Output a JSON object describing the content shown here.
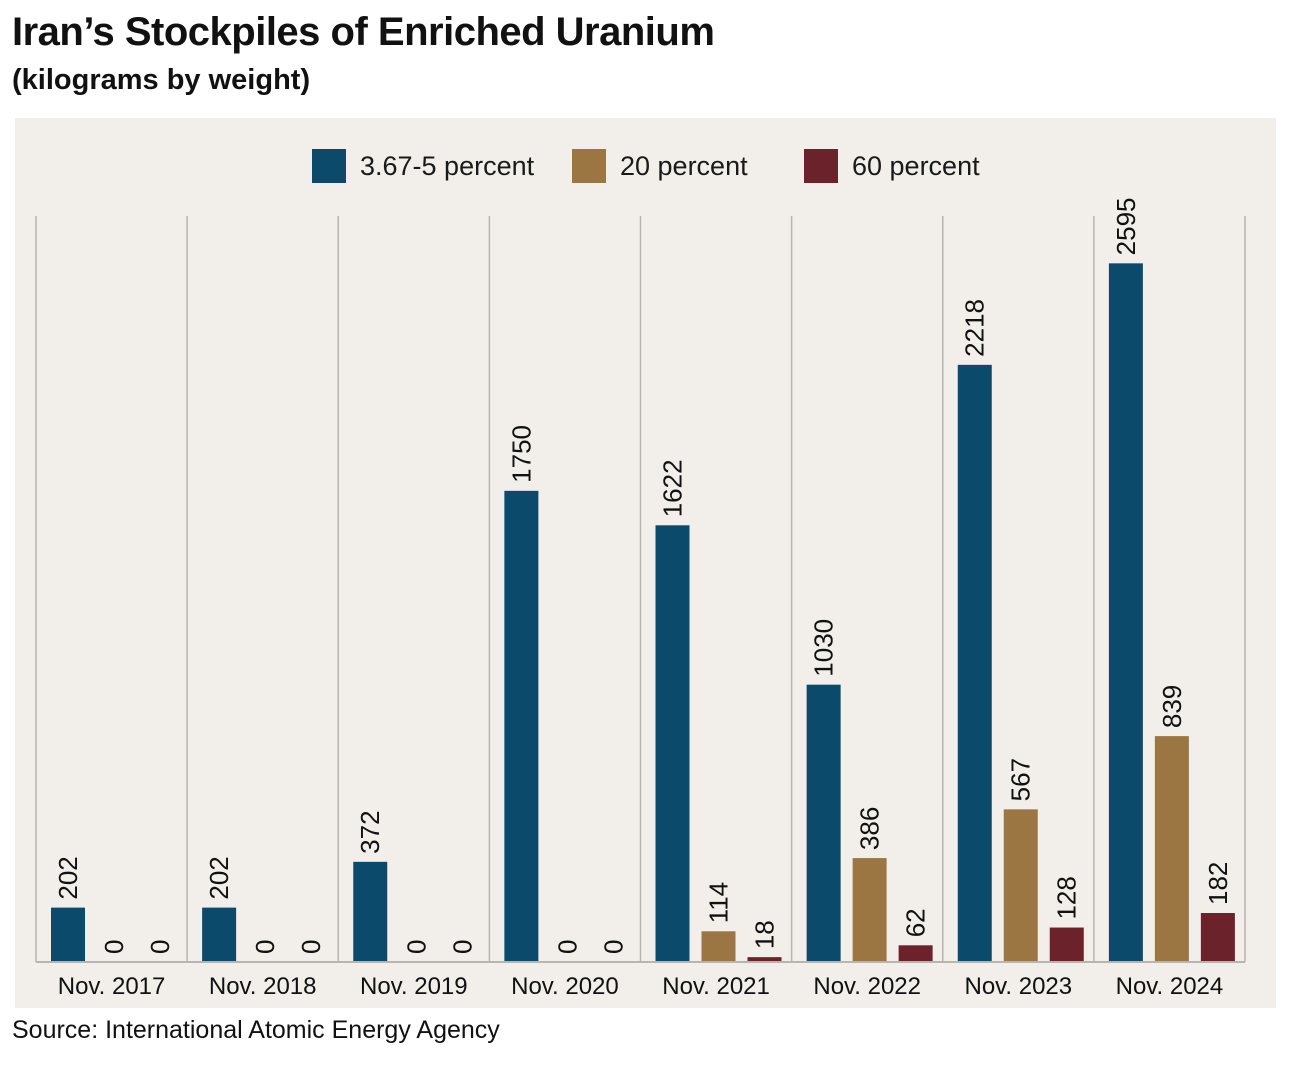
{
  "header": {
    "title": "Iran’s Stockpiles of Enriched Uranium",
    "subtitle": "(kilograms by weight)"
  },
  "footer": {
    "source": "Source: International Atomic Energy Agency"
  },
  "colors": {
    "panel_background": "#f2eee9",
    "divider": "#b8b4ae"
  },
  "chart_data": {
    "type": "bar",
    "title": "Iran’s Stockpiles of Enriched Uranium",
    "subtitle": "(kilograms by weight)",
    "categories": [
      "Nov. 2017",
      "Nov. 2018",
      "Nov. 2019",
      "Nov. 2020",
      "Nov. 2021",
      "Nov. 2022",
      "Nov. 2023",
      "Nov. 2024"
    ],
    "series": [
      {
        "name": "3.67-5 percent",
        "color": "#0b4a6b",
        "values": [
          202,
          202,
          372,
          1750,
          1622,
          1030,
          2218,
          2595
        ]
      },
      {
        "name": "20 percent",
        "color": "#9b7642",
        "values": [
          0,
          0,
          0,
          0,
          114,
          386,
          567,
          839
        ]
      },
      {
        "name": "60 percent",
        "color": "#6b222b",
        "values": [
          0,
          0,
          0,
          0,
          18,
          62,
          128,
          182
        ]
      }
    ],
    "data_labels": true,
    "data_label_orientation": "vertical",
    "ylim": [
      0,
      2600
    ],
    "y_axis_visible": false,
    "grid": false,
    "category_dividers": true,
    "legend_position": "top-center"
  }
}
